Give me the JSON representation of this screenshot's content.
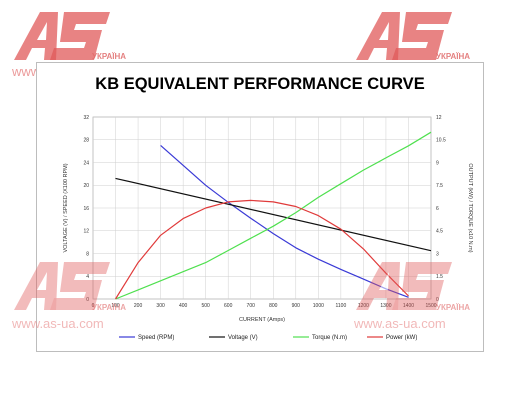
{
  "watermark": {
    "brand": "AS",
    "country": "УКРАЇНА",
    "url": "www.as-ua.com",
    "color": "#e05a5a"
  },
  "chart_data": {
    "type": "line",
    "title": "KB EQUIVALENT PERFORMANCE CURVE",
    "xlabel": "CURRENT (Amps)",
    "ylabel_left": "VOLTAGE (V) / SPEED (X100 RPM)",
    "ylabel_right": "OUTPUT (kW) / TORQUE (x10 N.m)",
    "xlim": [
      0,
      1500
    ],
    "ylim_left": [
      0,
      32
    ],
    "ylim_right": [
      0,
      12
    ],
    "x_ticks": [
      0,
      100,
      200,
      300,
      400,
      500,
      600,
      700,
      800,
      900,
      1000,
      1100,
      1200,
      1300,
      1400,
      1500
    ],
    "y_ticks_left": [
      0,
      4,
      8,
      12,
      16,
      20,
      24,
      28,
      32
    ],
    "y_ticks_right": [
      0,
      1.5,
      3,
      4.5,
      6,
      7.5,
      9,
      10.5,
      12
    ],
    "y_ticks_right_labels": [
      "0",
      "1.5",
      "3",
      "4.5",
      "6",
      "7.5",
      "9",
      "10.5",
      "12"
    ],
    "grid": true,
    "legend_position": "bottom",
    "series": [
      {
        "name": "Speed (RPM)",
        "color": "#3a3ad6",
        "axis": "left",
        "x": [
          300,
          400,
          500,
          600,
          700,
          800,
          900,
          1000,
          1100,
          1200,
          1300,
          1400
        ],
        "y": [
          27,
          23.5,
          20,
          17,
          14.2,
          11.5,
          9,
          7,
          5.2,
          3.5,
          1.8,
          0.3
        ]
      },
      {
        "name": "Voltage (V)",
        "color": "#111111",
        "axis": "left",
        "x": [
          100,
          1500
        ],
        "y": [
          21.2,
          8.5
        ]
      },
      {
        "name": "Torque (N.m)",
        "color": "#4fe04f",
        "axis": "right",
        "x": [
          100,
          200,
          300,
          400,
          500,
          600,
          700,
          800,
          900,
          1000,
          1100,
          1200,
          1300,
          1400,
          1500
        ],
        "y": [
          0,
          0.6,
          1.2,
          1.8,
          2.4,
          3.2,
          4.0,
          4.8,
          5.7,
          6.7,
          7.6,
          8.5,
          9.3,
          10.1,
          11.0
        ]
      },
      {
        "name": "Power (kW)",
        "color": "#e03a3a",
        "axis": "right",
        "x": [
          100,
          200,
          300,
          400,
          500,
          600,
          700,
          800,
          900,
          1000,
          1100,
          1200,
          1300,
          1400
        ],
        "y": [
          0,
          2.4,
          4.2,
          5.3,
          6.0,
          6.4,
          6.5,
          6.4,
          6.1,
          5.5,
          4.6,
          3.3,
          1.7,
          0.2
        ]
      }
    ]
  }
}
